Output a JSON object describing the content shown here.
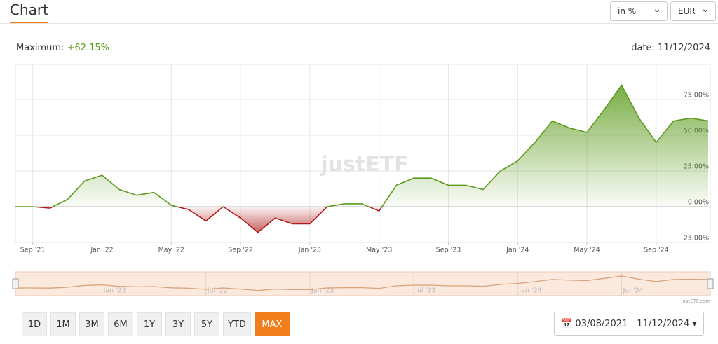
{
  "header": {
    "title": "Chart",
    "unit_select": "in %",
    "currency_select": "EUR"
  },
  "summary": {
    "max_label": "Maximum:",
    "max_value": "+62.15%",
    "date": "date: 11/12/2024"
  },
  "watermark": "justETF",
  "chart_data": {
    "type": "line",
    "x": [
      "2021-08",
      "2021-09",
      "2021-10",
      "2021-11",
      "2021-12",
      "2022-01",
      "2022-02",
      "2022-03",
      "2022-04",
      "2022-05",
      "2022-06",
      "2022-07",
      "2022-08",
      "2022-09",
      "2022-10",
      "2022-11",
      "2022-12",
      "2023-01",
      "2023-02",
      "2023-03",
      "2023-04",
      "2023-05",
      "2023-06",
      "2023-07",
      "2023-08",
      "2023-09",
      "2023-10",
      "2023-11",
      "2023-12",
      "2024-01",
      "2024-02",
      "2024-03",
      "2024-04",
      "2024-05",
      "2024-06",
      "2024-07",
      "2024-08",
      "2024-09",
      "2024-10",
      "2024-11",
      "2024-12"
    ],
    "values": [
      0,
      0,
      -1,
      5,
      18,
      22,
      12,
      8,
      10,
      1,
      -2,
      -10,
      0,
      -8,
      -18,
      -8,
      -12,
      -12,
      0,
      2,
      2,
      -3,
      15,
      20,
      20,
      15,
      15,
      12,
      25,
      32,
      45,
      60,
      55,
      52,
      68,
      85,
      62,
      45,
      60,
      62,
      60
    ],
    "color": "#5b9b1c",
    "negative_color": "#b01c1c",
    "xlim": [
      "2021-08",
      "2024-12"
    ],
    "xticks": [
      {
        "value": "2021-09",
        "label": "Sep '21"
      },
      {
        "value": "2022-01",
        "label": "Jan '22"
      },
      {
        "value": "2022-05",
        "label": "May '22"
      },
      {
        "value": "2022-09",
        "label": "Sep '22"
      },
      {
        "value": "2023-01",
        "label": "Jan '23"
      },
      {
        "value": "2023-05",
        "label": "May '23"
      },
      {
        "value": "2023-09",
        "label": "Sep '23"
      },
      {
        "value": "2024-01",
        "label": "Jan '24"
      },
      {
        "value": "2024-05",
        "label": "May '24"
      },
      {
        "value": "2024-09",
        "label": "Sep '24"
      }
    ],
    "ylim": [
      -25,
      99.5
    ],
    "yticks": [
      {
        "value": -25,
        "label": "-25.00%"
      },
      {
        "value": 0,
        "label": "0.00%"
      },
      {
        "value": 25,
        "label": "25.00%"
      },
      {
        "value": 50,
        "label": "50.00%"
      },
      {
        "value": 75,
        "label": "75.00%"
      }
    ],
    "grid": true
  },
  "navigator": {
    "ticks": [
      {
        "value": "2022-01",
        "label": "Jan '22"
      },
      {
        "value": "2022-07",
        "label": "Jul '22"
      },
      {
        "value": "2023-01",
        "label": "Jan '23"
      },
      {
        "value": "2023-07",
        "label": "Jul '23"
      },
      {
        "value": "2024-01",
        "label": "Jan '24"
      },
      {
        "value": "2024-07",
        "label": "Jul '24"
      }
    ],
    "credit": "justETF.com"
  },
  "range_buttons": [
    "1D",
    "1M",
    "3M",
    "6M",
    "1Y",
    "3Y",
    "5Y",
    "YTD",
    "MAX"
  ],
  "date_range": "03/08/2021 - 11/12/2024"
}
